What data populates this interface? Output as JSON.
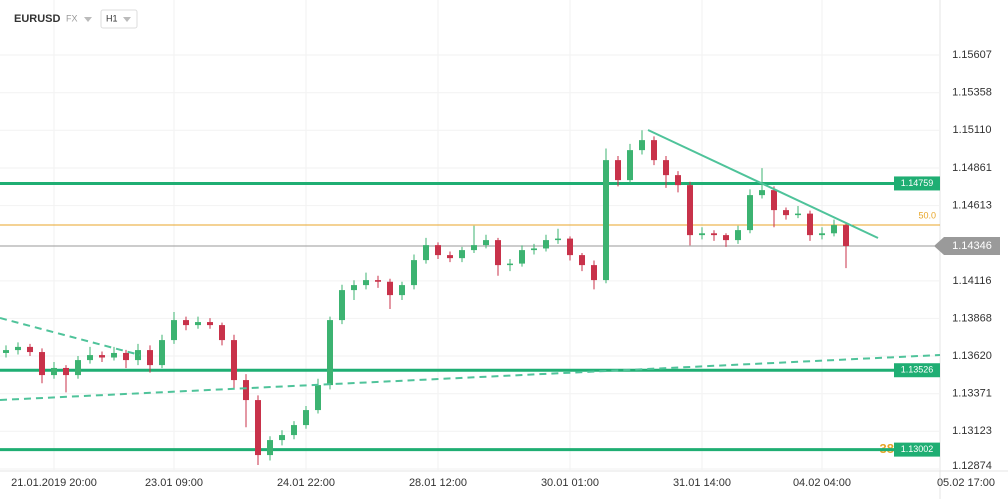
{
  "header": {
    "symbol": "EURUSD",
    "market": "FX",
    "timeframe": "H1"
  },
  "chart_data": {
    "type": "candlestick",
    "categories": [
      null,
      null,
      null,
      null,
      "21.01.2019 20:00",
      null,
      null,
      null,
      null,
      null,
      null,
      null,
      null,
      null,
      "23.01 09:00",
      null,
      null,
      null,
      null,
      null,
      null,
      null,
      null,
      null,
      null,
      "24.01 22:00",
      null,
      null,
      null,
      null,
      null,
      null,
      null,
      null,
      null,
      null,
      "28.01 12:00",
      null,
      null,
      null,
      null,
      null,
      null,
      null,
      null,
      null,
      null,
      "30.01 01:00",
      null,
      null,
      null,
      null,
      null,
      null,
      null,
      null,
      null,
      null,
      "31.01 14:00",
      null,
      null,
      null,
      null,
      null,
      null,
      null,
      null,
      null,
      "04.02 04:00",
      null,
      null,
      null,
      null,
      null,
      null,
      null,
      null,
      null,
      null,
      null,
      "05.02 17:00"
    ],
    "candles": [
      [
        1.1364,
        1.1369,
        1.1361,
        1.13659
      ],
      [
        1.13659,
        1.1371,
        1.1363,
        1.1368
      ],
      [
        1.1368,
        1.137,
        1.1362,
        1.13646
      ],
      [
        1.13646,
        1.1367,
        1.1344,
        1.13494
      ],
      [
        1.13494,
        1.1358,
        1.1347,
        1.13541
      ],
      [
        1.13541,
        1.1356,
        1.1338,
        1.13494
      ],
      [
        1.13494,
        1.1362,
        1.1347,
        1.13593
      ],
      [
        1.13593,
        1.1368,
        1.1357,
        1.13626
      ],
      [
        1.13626,
        1.1365,
        1.1358,
        1.1361
      ],
      [
        1.1361,
        1.1368,
        1.1359,
        1.1364
      ],
      [
        1.1364,
        1.1366,
        1.1354,
        1.13593
      ],
      [
        1.13593,
        1.137,
        1.1356,
        1.13659
      ],
      [
        1.13659,
        1.1369,
        1.1351,
        1.1356
      ],
      [
        1.1356,
        1.1376,
        1.1354,
        1.13725
      ],
      [
        1.13725,
        1.1391,
        1.137,
        1.13857
      ],
      [
        1.13857,
        1.1388,
        1.1379,
        1.13824
      ],
      [
        1.13824,
        1.1388,
        1.138,
        1.13844
      ],
      [
        1.13844,
        1.1387,
        1.138,
        1.13824
      ],
      [
        1.13824,
        1.1384,
        1.1369,
        1.13725
      ],
      [
        1.13725,
        1.1376,
        1.134,
        1.13461
      ],
      [
        1.13461,
        1.135,
        1.1315,
        1.13329
      ],
      [
        1.13329,
        1.1336,
        1.129,
        1.12966
      ],
      [
        1.12966,
        1.1309,
        1.1293,
        1.13065
      ],
      [
        1.13065,
        1.1313,
        1.1303,
        1.13098
      ],
      [
        1.13098,
        1.1319,
        1.1307,
        1.13164
      ],
      [
        1.13164,
        1.1329,
        1.1314,
        1.13263
      ],
      [
        1.13263,
        1.1347,
        1.1324,
        1.13428
      ],
      [
        1.13428,
        1.1388,
        1.134,
        1.13857
      ],
      [
        1.13857,
        1.1409,
        1.1383,
        1.14055
      ],
      [
        1.14055,
        1.1412,
        1.1399,
        1.14088
      ],
      [
        1.14088,
        1.1417,
        1.1406,
        1.14121
      ],
      [
        1.14121,
        1.1415,
        1.1407,
        1.1411
      ],
      [
        1.1411,
        1.1413,
        1.1393,
        1.14022
      ],
      [
        1.14022,
        1.1411,
        1.1399,
        1.14088
      ],
      [
        1.14088,
        1.1429,
        1.1406,
        1.14253
      ],
      [
        1.14253,
        1.144,
        1.1423,
        1.14352
      ],
      [
        1.14352,
        1.1437,
        1.1426,
        1.14286
      ],
      [
        1.14286,
        1.1431,
        1.1424,
        1.14266
      ],
      [
        1.14266,
        1.1434,
        1.1424,
        1.14319
      ],
      [
        1.14319,
        1.1448,
        1.143,
        1.14352
      ],
      [
        1.14352,
        1.1442,
        1.1433,
        1.14385
      ],
      [
        1.14385,
        1.144,
        1.1415,
        1.1422
      ],
      [
        1.1422,
        1.1426,
        1.1418,
        1.1423
      ],
      [
        1.1423,
        1.1435,
        1.1421,
        1.14319
      ],
      [
        1.14319,
        1.1436,
        1.1429,
        1.1433
      ],
      [
        1.1433,
        1.1442,
        1.1431,
        1.14385
      ],
      [
        1.14385,
        1.1446,
        1.1436,
        1.14395
      ],
      [
        1.14395,
        1.1441,
        1.1425,
        1.14286
      ],
      [
        1.14286,
        1.143,
        1.1418,
        1.1422
      ],
      [
        1.1422,
        1.1425,
        1.1406,
        1.14121
      ],
      [
        1.14121,
        1.1499,
        1.141,
        1.14913
      ],
      [
        1.14913,
        1.1494,
        1.1474,
        1.14781
      ],
      [
        1.14781,
        1.1502,
        1.1476,
        1.14979
      ],
      [
        1.14979,
        1.1511,
        1.1495,
        1.15045
      ],
      [
        1.15045,
        1.1507,
        1.1488,
        1.14913
      ],
      [
        1.14913,
        1.1494,
        1.1473,
        1.14814
      ],
      [
        1.14814,
        1.1484,
        1.147,
        1.14748
      ],
      [
        1.14748,
        1.1477,
        1.1435,
        1.14418
      ],
      [
        1.14418,
        1.1447,
        1.1439,
        1.1443
      ],
      [
        1.1443,
        1.1445,
        1.1438,
        1.14418
      ],
      [
        1.14418,
        1.1443,
        1.1434,
        1.14385
      ],
      [
        1.14385,
        1.1448,
        1.1436,
        1.14451
      ],
      [
        1.14451,
        1.1472,
        1.1443,
        1.14682
      ],
      [
        1.14682,
        1.1486,
        1.1466,
        1.14715
      ],
      [
        1.14715,
        1.1474,
        1.1447,
        1.14583
      ],
      [
        1.14583,
        1.146,
        1.1452,
        1.1455
      ],
      [
        1.1455,
        1.1461,
        1.1453,
        1.1456
      ],
      [
        1.1456,
        1.1458,
        1.1438,
        1.14418
      ],
      [
        1.14418,
        1.1447,
        1.1439,
        1.1443
      ],
      [
        1.1443,
        1.1452,
        1.1441,
        1.14484
      ],
      [
        1.14484,
        1.145,
        1.142,
        1.14346
      ],
      null,
      null,
      null,
      null,
      null,
      null,
      null,
      null,
      null,
      null
    ],
    "up_color": "#3cb371",
    "down_color": "#c8324a",
    "ylim": [
      1.12874,
      1.1597
    ],
    "yticks": [
      1.15607,
      1.15358,
      {
        "value": 1.1511,
        "label": "1.15110"
      },
      1.14861,
      1.14613,
      1.14116,
      1.13868,
      {
        "value": 1.1362,
        "label": "1.13620"
      },
      1.13371,
      1.13123,
      1.12874
    ],
    "grid": true,
    "levels": [
      1.14759,
      1.13526,
      1.13002
    ],
    "level_color": "#1fae73",
    "current_price": 1.14346,
    "fib_levels": [
      {
        "value": 1.14485,
        "label": "50.0"
      },
      {
        "value": 1.13002,
        "label": "38"
      }
    ],
    "fib_color": "#e8a628"
  }
}
